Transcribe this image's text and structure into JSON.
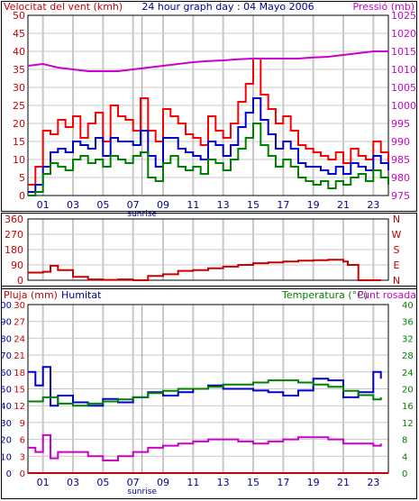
{
  "chart_data": [
    {
      "type": "line",
      "panel": "wind-pressure",
      "left_axis_title": "Velocitat del vent (kmh)",
      "header": "24 hour graph day : 04 Mayo 2006",
      "right_axis_title": "Pressió (mb)",
      "x_ticks": [
        "01",
        "03",
        "05",
        "07",
        "09",
        "11",
        "13",
        "15",
        "17",
        "19",
        "21",
        "23"
      ],
      "sunrise_label": "sunrise",
      "sunrise_hour": 7.6,
      "xlim": [
        0,
        24
      ],
      "ylim_left": [
        0,
        50
      ],
      "ylim_right": [
        975,
        1025
      ],
      "yticks_left": [
        "0",
        "5",
        "10",
        "15",
        "20",
        "25",
        "30",
        "35",
        "40",
        "45",
        "50"
      ],
      "yticks_right": [
        "975",
        "980",
        "985",
        "990",
        "995",
        "1000",
        "1005",
        "1010",
        "1015",
        "1020",
        "1025"
      ],
      "grid": true,
      "series": [
        {
          "key": "gust",
          "color": "#ff0000",
          "x": [
            0,
            0.5,
            1,
            1.5,
            2,
            2.5,
            3,
            3.5,
            4,
            4.5,
            5,
            5.5,
            6,
            6.5,
            7,
            7.5,
            8,
            8.5,
            9,
            9.5,
            10,
            10.5,
            11,
            11.5,
            12,
            12.5,
            13,
            13.5,
            14,
            14.5,
            15,
            15.5,
            16,
            16.5,
            17,
            17.5,
            18,
            18.5,
            19,
            19.5,
            20,
            20.5,
            21,
            21.5,
            22,
            22.5,
            23,
            23.5,
            24
          ],
          "y": [
            3,
            8,
            18,
            17,
            21,
            19,
            22,
            16,
            20,
            23,
            15,
            25,
            22,
            21,
            18,
            27,
            18,
            15,
            24,
            22,
            20,
            17,
            16,
            14,
            22,
            18,
            16,
            20,
            26,
            31,
            38,
            28,
            24,
            20,
            22,
            18,
            14,
            13,
            12,
            11,
            10,
            12,
            9,
            13,
            11,
            10,
            15,
            12,
            9
          ]
        },
        {
          "key": "speed",
          "color": "#0000cc",
          "x": [
            0,
            0.5,
            1,
            1.5,
            2,
            2.5,
            3,
            3.5,
            4,
            4.5,
            5,
            5.5,
            6,
            6.5,
            7,
            7.5,
            8,
            8.5,
            9,
            9.5,
            10,
            10.5,
            11,
            11.5,
            12,
            12.5,
            13,
            13.5,
            14,
            14.5,
            15,
            15.5,
            16,
            16.5,
            17,
            17.5,
            18,
            18.5,
            19,
            19.5,
            20,
            20.5,
            21,
            21.5,
            22,
            22.5,
            23,
            23.5,
            24
          ],
          "y": [
            1,
            3,
            8,
            12,
            13,
            12,
            15,
            14,
            13,
            16,
            11,
            16,
            15,
            15,
            14,
            18,
            11,
            8,
            16,
            16,
            13,
            12,
            11,
            10,
            15,
            14,
            11,
            14,
            19,
            23,
            27,
            21,
            17,
            13,
            15,
            13,
            9,
            8,
            8,
            7,
            6,
            8,
            6,
            9,
            8,
            7,
            11,
            9,
            7
          ]
        },
        {
          "key": "mean",
          "color": "#008000",
          "x": [
            0,
            0.5,
            1,
            1.5,
            2,
            2.5,
            3,
            3.5,
            4,
            4.5,
            5,
            5.5,
            6,
            6.5,
            7,
            7.5,
            8,
            8.5,
            9,
            9.5,
            10,
            10.5,
            11,
            11.5,
            12,
            12.5,
            13,
            13.5,
            14,
            14.5,
            15,
            15.5,
            16,
            16.5,
            17,
            17.5,
            18,
            18.5,
            19,
            19.5,
            20,
            20.5,
            21,
            21.5,
            22,
            22.5,
            23,
            23.5,
            24
          ],
          "y": [
            0,
            1,
            6,
            9,
            8,
            7,
            10,
            11,
            9,
            10,
            8,
            11,
            10,
            9,
            11,
            12,
            5,
            4,
            9,
            11,
            8,
            7,
            8,
            6,
            10,
            9,
            7,
            10,
            13,
            16,
            20,
            14,
            11,
            8,
            10,
            8,
            5,
            4,
            3,
            4,
            2,
            4,
            3,
            5,
            6,
            4,
            7,
            5,
            3
          ]
        },
        {
          "key": "pressure",
          "axis": "right",
          "color": "#cc00cc",
          "x": [
            0,
            1,
            2,
            3,
            4,
            5,
            6,
            7,
            8,
            9,
            10,
            11,
            12,
            13,
            14,
            15,
            16,
            17,
            18,
            19,
            20,
            21,
            22,
            23,
            24
          ],
          "y": [
            1011,
            1011.5,
            1010.5,
            1010,
            1009.5,
            1009.5,
            1009.5,
            1010,
            1010.5,
            1011,
            1011.5,
            1012,
            1012.3,
            1012.5,
            1012.8,
            1013,
            1013,
            1013,
            1013,
            1013.3,
            1013.5,
            1014,
            1014.5,
            1015,
            1015
          ]
        }
      ]
    },
    {
      "type": "line",
      "panel": "wind-direction",
      "yticks_left": [
        "0",
        "90",
        "180",
        "270",
        "360"
      ],
      "ylim": [
        0,
        360
      ],
      "right_labels": [
        "N",
        "W",
        "S",
        "E",
        "N"
      ],
      "series": [
        {
          "key": "direction",
          "color": "#cc0000",
          "x": [
            0,
            1,
            1.5,
            2,
            3,
            4,
            5,
            6,
            7,
            8,
            9,
            10,
            11,
            12,
            13,
            14,
            15,
            16,
            17,
            18,
            19,
            20,
            21,
            21.3,
            22,
            23,
            23.5
          ],
          "y": [
            45,
            50,
            85,
            60,
            20,
            5,
            2,
            5,
            0,
            25,
            35,
            55,
            60,
            70,
            80,
            90,
            100,
            105,
            110,
            115,
            118,
            120,
            110,
            90,
            0,
            0,
            0
          ]
        }
      ]
    },
    {
      "type": "line",
      "panel": "rain-humidity-temp",
      "rain_axis_title": "Pluja (mm)",
      "humidity_axis_title": "Humitat",
      "temperature_axis_title": "Temperatura (°C)",
      "dewpoint_axis_title": "Punt rosada",
      "yticks_humidity": [
        "0",
        "10",
        "20",
        "30",
        "40",
        "50",
        "60",
        "70",
        "80",
        "90",
        "100"
      ],
      "yticks_rain": [
        "0",
        "3",
        "6",
        "9",
        "12",
        "15",
        "18",
        "21",
        "24",
        "27",
        "30"
      ],
      "yticks_temp": [
        "0",
        "4",
        "8",
        "12",
        "16",
        "20",
        "24",
        "28",
        "32",
        "36",
        "40"
      ],
      "ylim_temp": [
        0,
        40
      ],
      "sunrise_label": "sunrise",
      "series": [
        {
          "key": "humidity",
          "color": "#0000cc",
          "x": [
            0,
            0.5,
            1,
            1.5,
            2,
            3,
            4,
            5,
            6,
            7,
            8,
            9,
            10,
            11,
            12,
            13,
            14,
            15,
            16,
            17,
            18,
            19,
            20,
            21,
            22,
            23,
            23.5
          ],
          "y": [
            60,
            52,
            63,
            40,
            46,
            42,
            40,
            44,
            42,
            45,
            48,
            46,
            48,
            50,
            52,
            50,
            50,
            49,
            48,
            46,
            49,
            56,
            55,
            45,
            48,
            60,
            56
          ]
        },
        {
          "key": "temperature",
          "color": "#008000",
          "x": [
            0,
            1,
            2,
            3,
            4,
            5,
            6,
            7,
            8,
            9,
            10,
            11,
            12,
            13,
            14,
            15,
            16,
            17,
            18,
            19,
            20,
            21,
            22,
            23,
            23.5
          ],
          "y": [
            17,
            18,
            16.5,
            16,
            16.5,
            17,
            17.5,
            18,
            19,
            19.5,
            20,
            20,
            20.5,
            21,
            21,
            21.5,
            22,
            22,
            21.5,
            21,
            20.5,
            19.5,
            18.5,
            17.5,
            18
          ]
        },
        {
          "key": "dewpoint",
          "color": "#cc00cc",
          "x": [
            0,
            0.5,
            1,
            1.5,
            2,
            3,
            4,
            5,
            6,
            7,
            8,
            9,
            10,
            11,
            12,
            13,
            14,
            15,
            16,
            17,
            18,
            19,
            20,
            21,
            22,
            23,
            23.5
          ],
          "y": [
            6,
            5,
            9,
            3.5,
            5,
            5,
            4,
            3,
            4,
            5,
            6,
            6.5,
            7,
            7.5,
            8,
            8,
            7.5,
            7,
            7.5,
            8,
            8.5,
            8.5,
            8,
            7,
            7,
            6.5,
            7
          ]
        },
        {
          "key": "rain",
          "color": "#cc0000",
          "x": [
            0,
            24
          ],
          "y": [
            0,
            0
          ]
        }
      ]
    }
  ]
}
